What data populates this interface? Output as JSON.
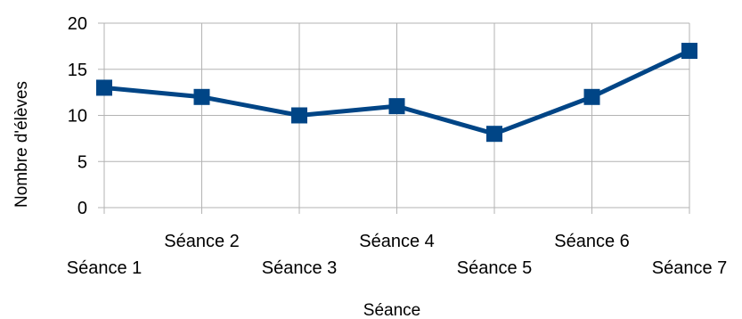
{
  "chart_data": {
    "type": "line",
    "title": "",
    "xlabel": "Séance",
    "ylabel": "Nombre d'élèves",
    "categories": [
      "Séance 1",
      "Séance 2",
      "Séance 3",
      "Séance 4",
      "Séance 5",
      "Séance 6",
      "Séance 7"
    ],
    "series": [
      {
        "values": [
          13,
          12,
          10,
          11,
          8,
          12,
          17
        ],
        "color": "#004586",
        "marker": "square"
      }
    ],
    "ylim": [
      0,
      20
    ],
    "yticks": [
      "0",
      "5",
      "10",
      "15",
      "20"
    ],
    "grid": true,
    "gridColor": "#b3b3b3",
    "legend": "none"
  }
}
